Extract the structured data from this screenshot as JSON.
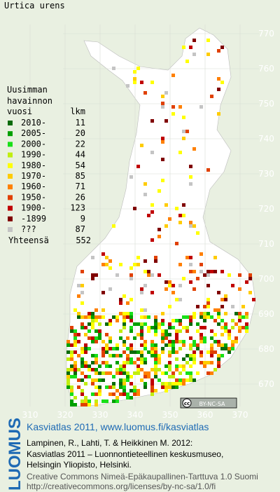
{
  "map": {
    "title": "Urtica urens",
    "xticks": [
      310,
      320,
      330,
      340,
      350,
      360,
      370
    ],
    "yticks": [
      670,
      680,
      690,
      700,
      710,
      720,
      730,
      740,
      750,
      760,
      770
    ],
    "legend": {
      "heading": [
        "Uusimman",
        "havainnon"
      ],
      "columns": [
        "vuosi",
        "lkm"
      ],
      "items": [
        {
          "label": "2010-",
          "count": 11,
          "color": "#0b6b0b"
        },
        {
          "label": "2005-",
          "count": 20,
          "color": "#00a000"
        },
        {
          "label": "2000-",
          "count": 22,
          "color": "#18e018"
        },
        {
          "label": "1990-",
          "count": 44,
          "color": "#c0ee10"
        },
        {
          "label": "1980-",
          "count": 54,
          "color": "#ffff00"
        },
        {
          "label": "1970-",
          "count": 85,
          "color": "#ffcc00"
        },
        {
          "label": "1960-",
          "count": 71,
          "color": "#ff8000"
        },
        {
          "label": "1950-",
          "count": 26,
          "color": "#e04000"
        },
        {
          "label": "1900-",
          "count": 123,
          "color": "#c00000"
        },
        {
          "label": "-1899",
          "count": 9,
          "color": "#800000"
        },
        {
          "label": "???",
          "count": 87,
          "color": "#c4c4c4"
        }
      ],
      "total_label": "Yhteensä",
      "total": 552
    },
    "license_badge": {
      "cc": "cc",
      "text": "BY-NC-SA"
    }
  },
  "footer": {
    "logo": "LUOMUS",
    "headline": "Kasviatlas 2011, www.luomus.fi/kasviatlas",
    "citation": [
      "Lampinen, R., Lahti, T. & Heikkinen M. 2012:",
      "Kasviatlas 2011 – Luonnontieteellinen keskusmuseo,",
      "Helsingin Yliopisto, Helsinki."
    ],
    "license": [
      "Creative Commons Nimeä-Epäkaupallinen-Tarttuva 1.0 Suomi",
      "http://creativecommons.org/licenses/by-nc-sa/1.0/fi"
    ]
  }
}
